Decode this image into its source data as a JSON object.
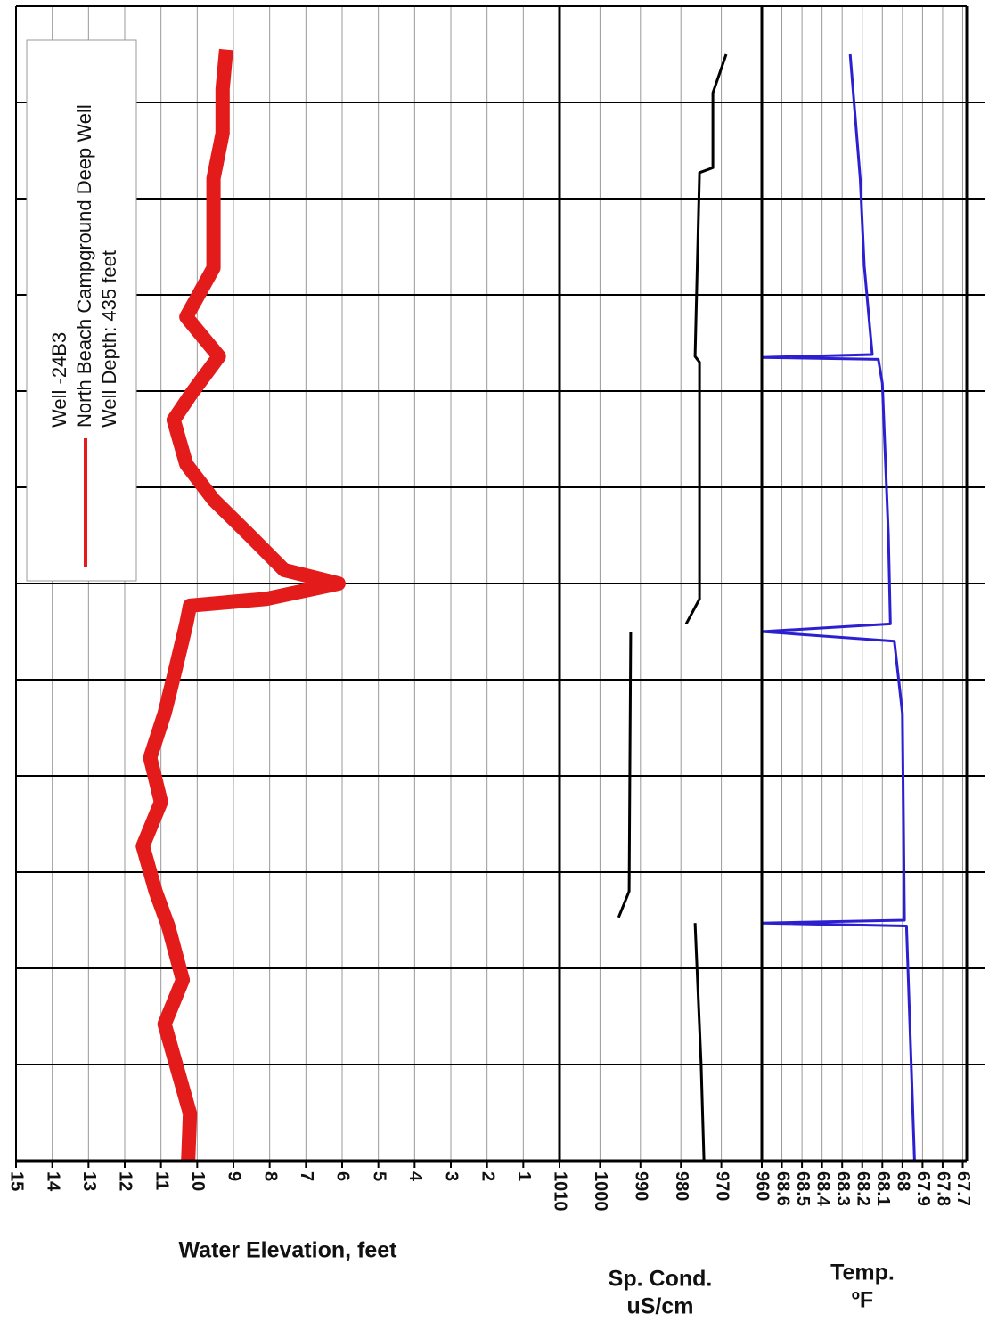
{
  "chart_data": [
    {
      "type": "line",
      "xlabel": "Water Elevation, feet",
      "legend_title": "Well -24B3",
      "legend_note": "Well Depth: 435 feet",
      "ylim": [
        15,
        0
      ],
      "yticks": [
        15,
        14,
        13,
        12,
        11,
        10,
        9,
        8,
        7,
        6,
        5,
        4,
        3,
        2,
        1
      ],
      "xlim": [
        0,
        12
      ],
      "xticks": [
        1,
        2,
        3,
        4,
        5,
        6,
        7,
        8,
        9,
        10,
        11
      ],
      "grid": true,
      "series": [
        {
          "name": "North Beach Campground Deep Well",
          "color": "#e31b1b",
          "x": [
            0,
            0.49,
            1.42,
            1.88,
            2.44,
            2.8,
            3.27,
            3.73,
            4.19,
            4.65,
            5.03,
            5.58,
            5.77,
            5.84,
            6.0,
            6.14,
            6.5,
            6.87,
            7.24,
            7.7,
            7.98,
            8.36,
            8.77,
            9.28,
            9.75,
            10.21,
            10.68,
            11.14,
            11.55
          ],
          "values": [
            10.25,
            10.2,
            10.9,
            10.4,
            10.8,
            11.15,
            11.5,
            11.0,
            11.3,
            10.9,
            10.65,
            10.3,
            10.2,
            8.1,
            6.1,
            7.6,
            8.55,
            9.55,
            10.3,
            10.65,
            10.15,
            9.4,
            10.3,
            9.55,
            9.55,
            9.55,
            9.3,
            9.3,
            9.2
          ]
        }
      ]
    },
    {
      "type": "line",
      "label_lines": [
        "Sp. Cond.",
        "uS/cm"
      ],
      "ylim": [
        1010,
        960
      ],
      "yticks": [
        1010,
        1000,
        990,
        980,
        970,
        960
      ],
      "xlim": [
        0,
        12
      ],
      "xticks": [
        1,
        2,
        3,
        4,
        5,
        6,
        7,
        8,
        9,
        10,
        11
      ],
      "grid": true,
      "series": [
        {
          "name": "Sp. Cond.",
          "color": "#000000",
          "x": [
            0,
            1.0,
            2.47,
            2.48,
            2.53,
            2.8,
            5.5,
            5.55,
            5.58,
            5.84,
            8.3,
            8.36,
            10.27,
            10.32,
            11.1,
            11.5
          ],
          "values": [
            974.3,
            975.0,
            976.5,
            null,
            995.4,
            992.8,
            992.4,
            null,
            978.7,
            975.4,
            975.4,
            976.5,
            975.4,
            972.1,
            972.1,
            968.8
          ]
        }
      ]
    },
    {
      "type": "line",
      "label_lines": [
        "Temp.",
        "ºF"
      ],
      "ylim": [
        68.7,
        67.68
      ],
      "yticks": [
        68.6,
        68.5,
        68.4,
        68.3,
        68.2,
        68.1,
        68,
        67.9,
        67.8,
        67.7
      ],
      "xlim": [
        0,
        12
      ],
      "xticks": [
        1,
        2,
        3,
        4,
        5,
        6,
        7,
        8,
        9,
        10,
        11
      ],
      "grid": true,
      "series": [
        {
          "name": "Temp.",
          "color": "#2b1fd0",
          "x": [
            0,
            2.44,
            2.47,
            2.5,
            4.65,
            5.4,
            5.5,
            5.58,
            6.5,
            8.08,
            8.33,
            8.35,
            8.38,
            9.3,
            10.2,
            11.5
          ],
          "values": [
            67.94,
            67.98,
            68.7,
            67.99,
            68.0,
            68.04,
            68.7,
            68.06,
            68.07,
            68.1,
            68.12,
            68.7,
            68.15,
            68.19,
            68.21,
            68.26
          ]
        }
      ]
    }
  ]
}
